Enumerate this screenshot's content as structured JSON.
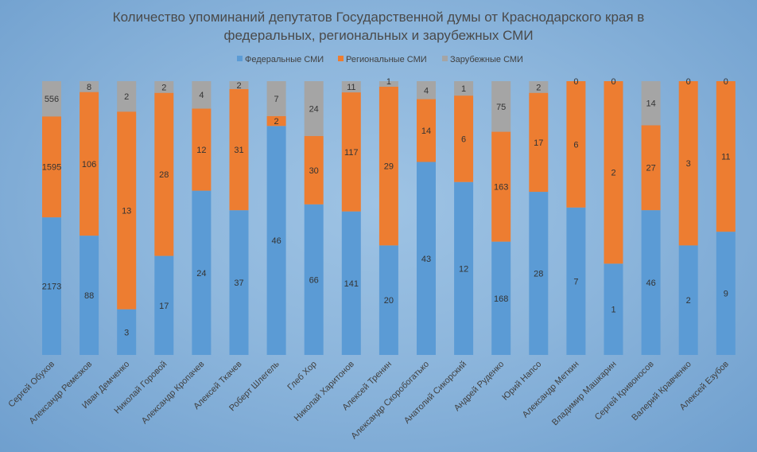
{
  "chart_data": {
    "type": "bar",
    "stacked": true,
    "normalized_percent": true,
    "title_lines": [
      "Количество упоминаний депутатов Государственной думы от Краснодарского края в",
      "федеральных, региональных и зарубежных СМИ"
    ],
    "legend_position": "top",
    "grid": false,
    "categories": [
      "Сергей Обухов",
      "Александр Ремезков",
      "Иван Демченко",
      "Николай Горовой",
      "Александр Кропачев",
      "Алексей Ткачев",
      "Роберт Шлегель",
      "Глеб Хор",
      "Николай Харитонов",
      "Алексей Тренин",
      "Александр Скоробогатько",
      "Анатолий Сикорский",
      "Андрей Руденко",
      "Юрий Напсо",
      "Александр Меткин",
      "Владимир Машкарин",
      "Сергей Кривоносов",
      "Валерий Кравченко",
      "Алексей Езубов"
    ],
    "series": [
      {
        "name": "Федеральные СМИ",
        "color": "#5b9bd5",
        "values": [
          2173,
          88,
          3,
          17,
          24,
          37,
          46,
          66,
          141,
          20,
          43,
          12,
          168,
          28,
          7,
          1,
          46,
          2,
          9
        ]
      },
      {
        "name": "Региональные СМИ",
        "color": "#ed7d31",
        "values": [
          1595,
          106,
          13,
          28,
          12,
          31,
          2,
          30,
          117,
          29,
          14,
          6,
          163,
          17,
          6,
          2,
          27,
          3,
          11
        ]
      },
      {
        "name": "Зарубежные СМИ",
        "color": "#a5a5a5",
        "values": [
          556,
          8,
          2,
          2,
          4,
          2,
          7,
          24,
          11,
          1,
          4,
          1,
          75,
          2,
          0,
          0,
          14,
          0,
          0
        ]
      }
    ]
  }
}
